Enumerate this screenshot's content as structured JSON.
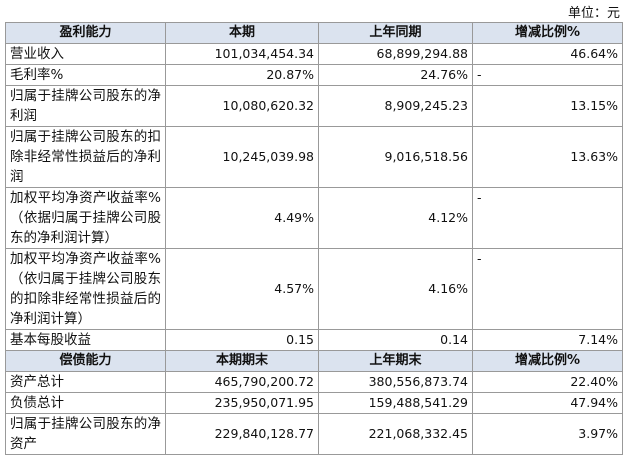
{
  "unit": "单位：元",
  "table": {
    "sections": [
      {
        "header": [
          "盈利能力",
          "本期",
          "上年同期",
          "增减比例%"
        ],
        "rows": [
          [
            "营业收入",
            "101,034,454.34",
            "68,899,294.88",
            "46.64%"
          ],
          [
            "毛利率%",
            "20.87%",
            "24.76%",
            "-"
          ],
          [
            "归属于挂牌公司股东的净利润",
            "10,080,620.32",
            "8,909,245.23",
            "13.15%"
          ],
          [
            "归属于挂牌公司股东的扣除非经常性损益后的净利润",
            "10,245,039.98",
            "9,016,518.56",
            "13.63%"
          ],
          [
            "加权平均净资产收益率%（依据归属于挂牌公司股东的净利润计算）",
            "4.49%",
            "4.12%",
            "-"
          ],
          [
            "加权平均净资产收益率%（依归属于挂牌公司股东的扣除非经常性损益后的净利润计算）",
            "4.57%",
            "4.16%",
            "-"
          ],
          [
            "基本每股收益",
            "0.15",
            "0.14",
            "7.14%"
          ]
        ]
      },
      {
        "header": [
          "偿债能力",
          "本期期末",
          "上年期末",
          "增减比例%"
        ],
        "rows": [
          [
            "资产总计",
            "465,790,200.72",
            "380,556,873.74",
            "22.40%"
          ],
          [
            "负债总计",
            "235,950,071.95",
            "159,488,541.29",
            "47.94%"
          ],
          [
            "归属于挂牌公司股东的净资产",
            "229,840,128.77",
            "221,068,332.45",
            "3.97%"
          ]
        ]
      }
    ]
  }
}
